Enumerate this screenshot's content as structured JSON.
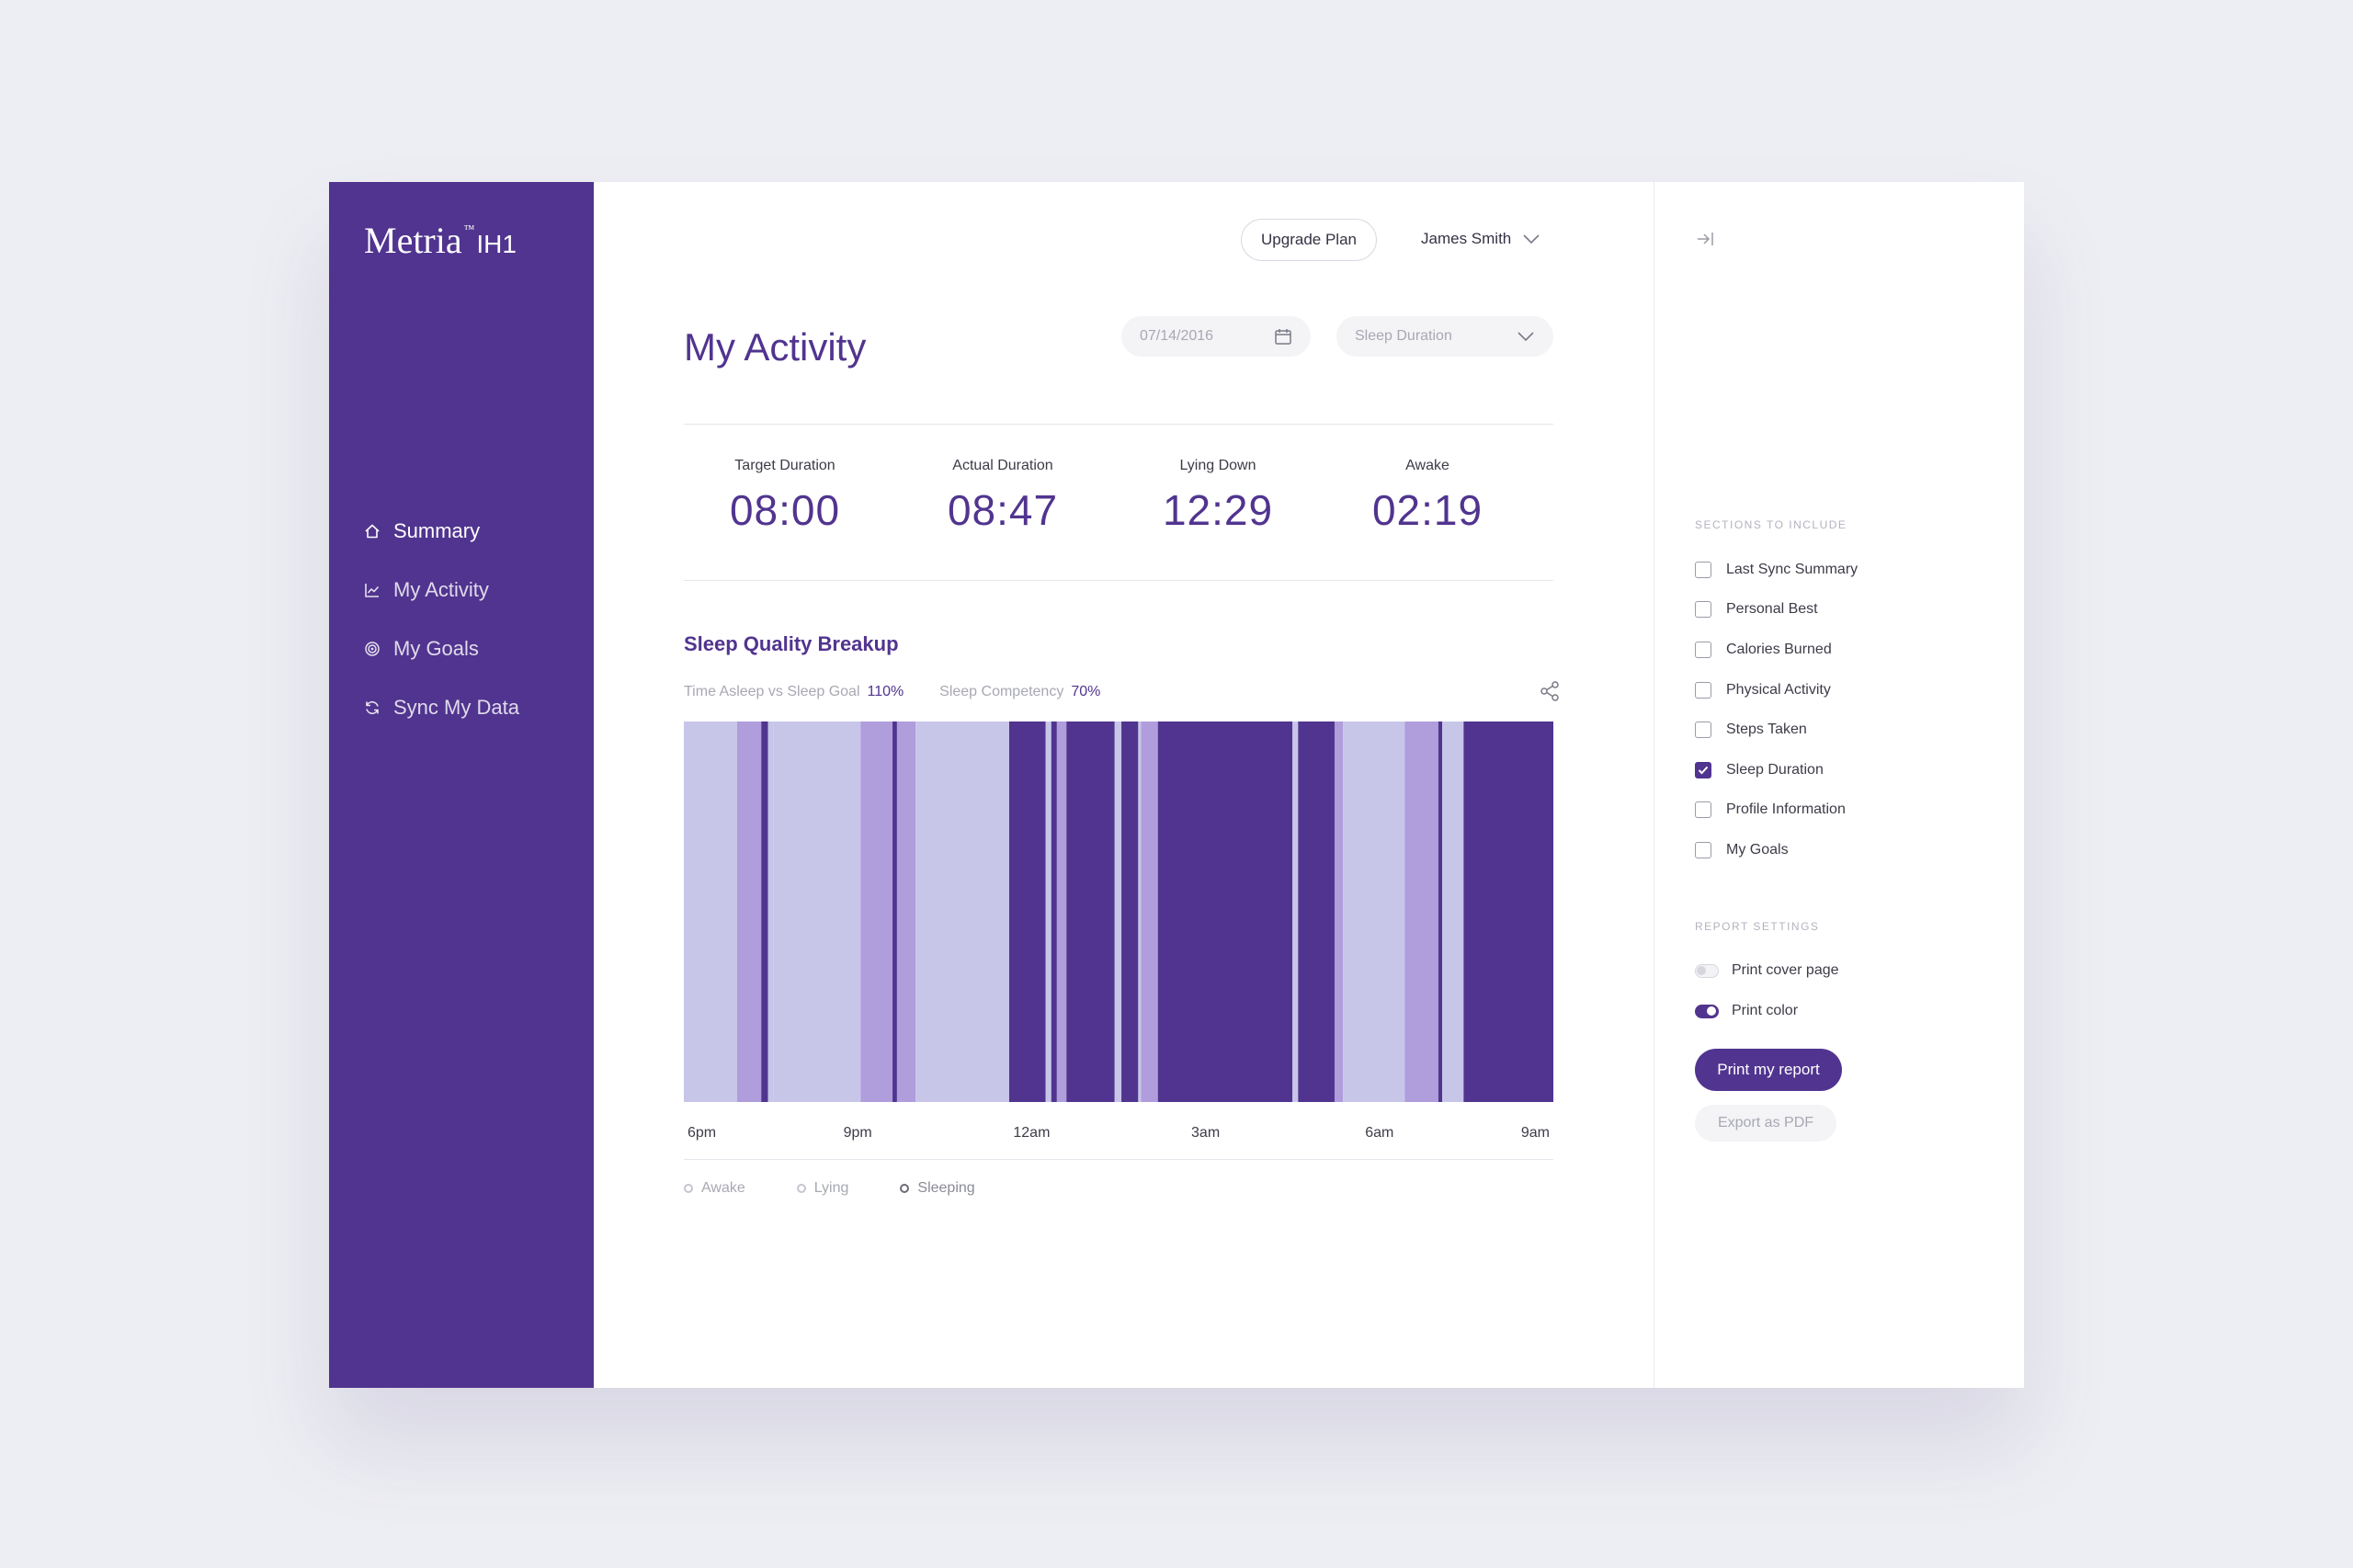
{
  "brand": {
    "name": "Metria",
    "trademark": "™",
    "model": "IH1"
  },
  "nav": {
    "items": [
      {
        "label": "Summary",
        "icon": "home-icon",
        "active": true
      },
      {
        "label": "My Activity",
        "icon": "chart-line-icon",
        "active": false
      },
      {
        "label": "My Goals",
        "icon": "target-icon",
        "active": false
      },
      {
        "label": "Sync My Data",
        "icon": "sync-icon",
        "active": false
      }
    ]
  },
  "header": {
    "upgrade_label": "Upgrade Plan",
    "user_name": "James Smith"
  },
  "page": {
    "title": "My Activity",
    "date_value": "07/14/2016",
    "section_select_value": "Sleep Duration"
  },
  "stats": [
    {
      "label": "Target Duration",
      "value": "08:00"
    },
    {
      "label": "Actual Duration",
      "value": "08:47"
    },
    {
      "label": "Lying Down",
      "value": "12:29"
    },
    {
      "label": "Awake",
      "value": "02:19"
    }
  ],
  "sleep": {
    "title": "Sleep Quality Breakup",
    "metric1_label": "Time Asleep vs Sleep Goal",
    "metric1_value": "110%",
    "metric2_label": "Sleep Competency",
    "metric2_value": "70%",
    "legend": [
      "Awake",
      "Lying",
      "Sleeping"
    ]
  },
  "chart_data": {
    "type": "heatmap",
    "title": "Sleep Quality Breakup",
    "x_tick_labels": [
      "6pm",
      "9pm",
      "12am",
      "3am",
      "6am",
      "9am"
    ],
    "x_range_hours": [
      0,
      15.5
    ],
    "states": [
      "Awake",
      "Lying",
      "Sleeping"
    ],
    "colors": {
      "Awake": "#c7c6e9",
      "Lying": "#b09ddc",
      "Sleeping": "#51348f"
    },
    "segments": [
      {
        "state": "Awake",
        "start": 0,
        "end": 0.95
      },
      {
        "state": "Lying",
        "start": 0.95,
        "end": 1.38
      },
      {
        "state": "Sleeping",
        "start": 1.38,
        "end": 1.5
      },
      {
        "state": "Awake",
        "start": 1.5,
        "end": 1.6
      },
      {
        "state": "Awake",
        "start": 1.6,
        "end": 3.15
      },
      {
        "state": "Lying",
        "start": 3.15,
        "end": 3.72
      },
      {
        "state": "Sleeping",
        "start": 3.72,
        "end": 3.8
      },
      {
        "state": "Lying",
        "start": 3.8,
        "end": 4.13
      },
      {
        "state": "Awake",
        "start": 4.13,
        "end": 5.8
      },
      {
        "state": "Sleeping",
        "start": 5.8,
        "end": 6.45
      },
      {
        "state": "Awake",
        "start": 6.45,
        "end": 6.55
      },
      {
        "state": "Sleeping",
        "start": 6.55,
        "end": 6.65
      },
      {
        "state": "Lying",
        "start": 6.65,
        "end": 6.82
      },
      {
        "state": "Sleeping",
        "start": 6.82,
        "end": 7.68
      },
      {
        "state": "Awake",
        "start": 7.68,
        "end": 7.8
      },
      {
        "state": "Sleeping",
        "start": 7.8,
        "end": 8.1
      },
      {
        "state": "Awake",
        "start": 8.1,
        "end": 8.15
      },
      {
        "state": "Lying",
        "start": 8.15,
        "end": 8.45
      },
      {
        "state": "Sleeping",
        "start": 8.45,
        "end": 10.85
      },
      {
        "state": "Awake",
        "start": 10.85,
        "end": 10.95
      },
      {
        "state": "Sleeping",
        "start": 10.95,
        "end": 11.6
      },
      {
        "state": "Lying",
        "start": 11.6,
        "end": 11.75
      },
      {
        "state": "Awake",
        "start": 11.75,
        "end": 12.85
      },
      {
        "state": "Lying",
        "start": 12.85,
        "end": 13.45
      },
      {
        "state": "Sleeping",
        "start": 13.45,
        "end": 13.52
      },
      {
        "state": "Awake",
        "start": 13.52,
        "end": 13.9
      },
      {
        "state": "Sleeping",
        "start": 13.9,
        "end": 15.5
      }
    ]
  },
  "panel": {
    "sections_heading": "SECTIONS TO INCLUDE",
    "sections": [
      {
        "label": "Last Sync Summary",
        "checked": false
      },
      {
        "label": "Personal Best",
        "checked": false
      },
      {
        "label": "Calories Burned",
        "checked": false
      },
      {
        "label": "Physical Activity",
        "checked": false
      },
      {
        "label": "Steps Taken",
        "checked": false
      },
      {
        "label": "Sleep Duration",
        "checked": true
      },
      {
        "label": "Profile Information",
        "checked": false
      },
      {
        "label": "My Goals",
        "checked": false
      }
    ],
    "settings_heading": "REPORT SETTINGS",
    "settings": [
      {
        "label": "Print cover page",
        "on": false
      },
      {
        "label": "Print color",
        "on": true
      }
    ],
    "print_label": "Print my report",
    "export_label": "Export as PDF"
  }
}
